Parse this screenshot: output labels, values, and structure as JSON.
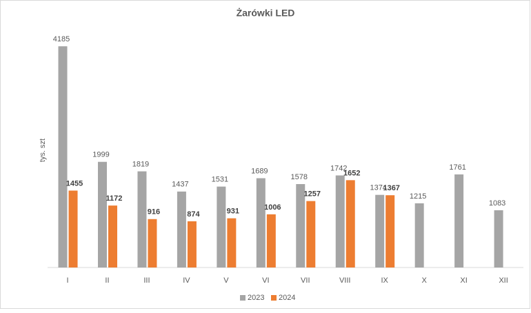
{
  "chart_data": {
    "type": "bar",
    "title": "Żarówki LED",
    "y_label": "tys. szt",
    "categories": [
      "I",
      "II",
      "III",
      "IV",
      "V",
      "VI",
      "VII",
      "VIII",
      "IX",
      "X",
      "XI",
      "XII"
    ],
    "series": [
      {
        "name": "2023",
        "color": "#a5a5a5",
        "values": [
          4185,
          1999,
          1819,
          1437,
          1531,
          1689,
          1578,
          1742,
          1374,
          1215,
          1761,
          1083
        ]
      },
      {
        "name": "2024",
        "color": "#ed7d31",
        "values": [
          1455,
          1172,
          916,
          874,
          931,
          1006,
          1257,
          1652,
          1367,
          null,
          null,
          null
        ]
      }
    ],
    "ylim": [
      0,
      4500
    ],
    "legend": "bottom"
  }
}
